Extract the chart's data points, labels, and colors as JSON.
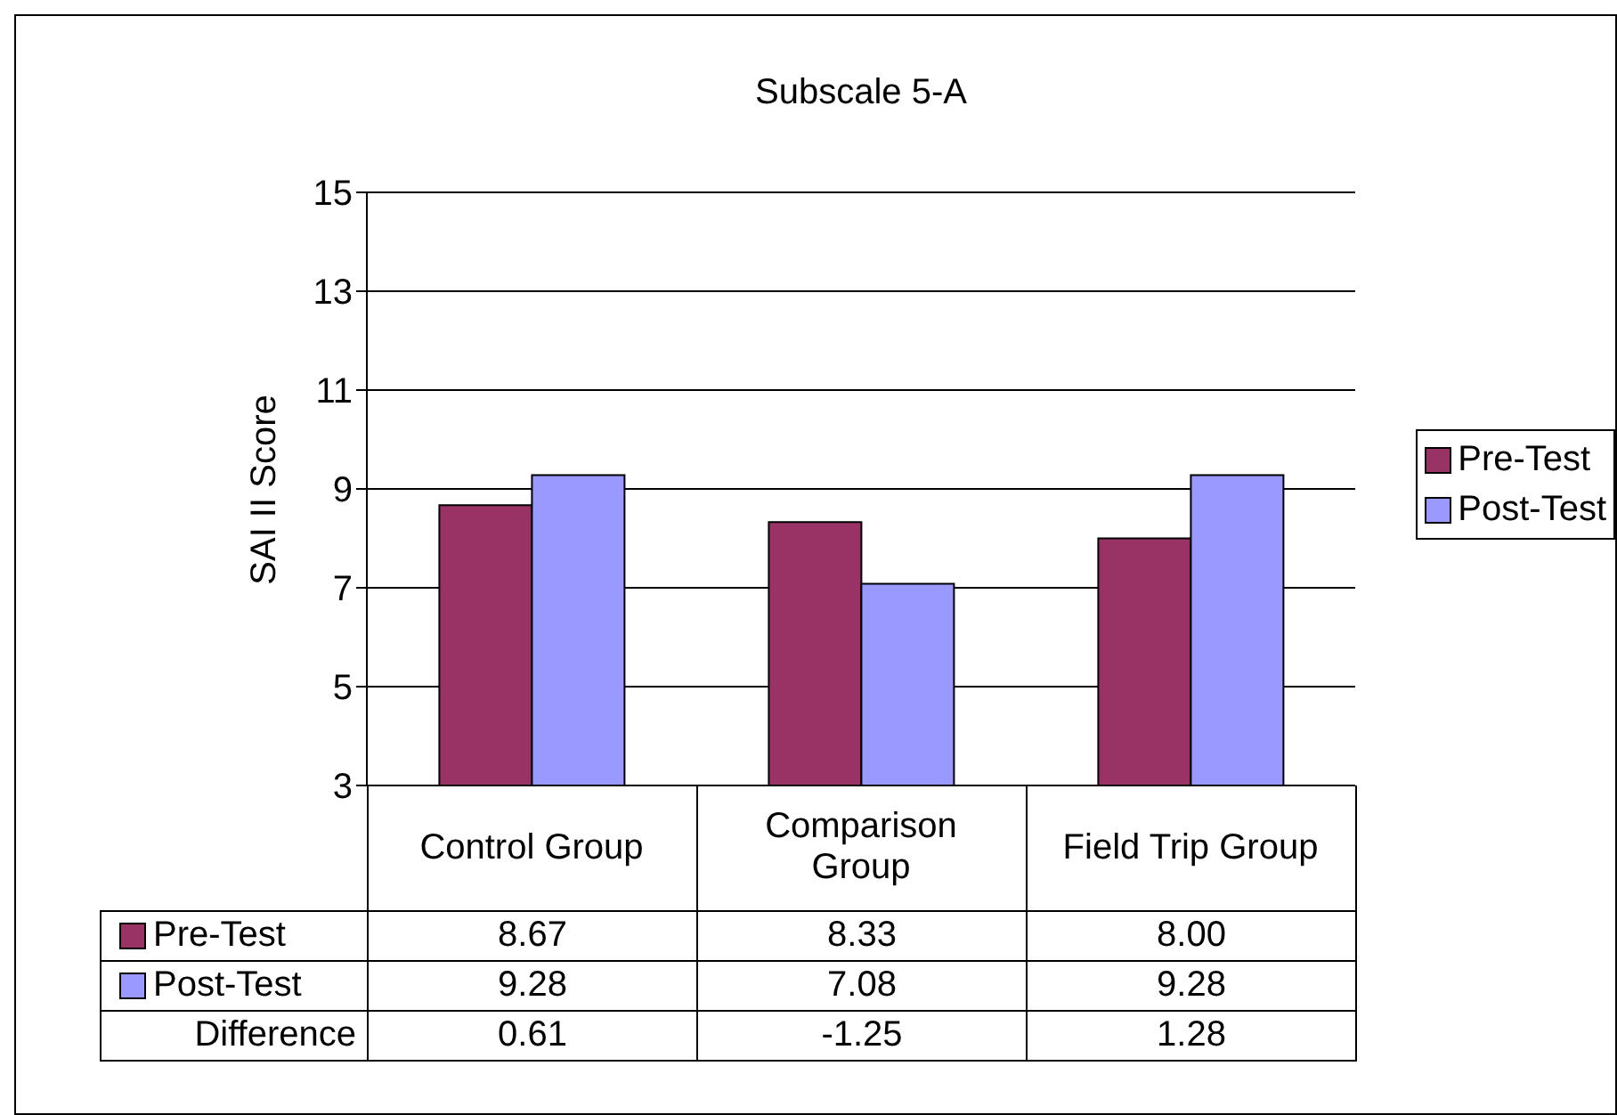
{
  "chart_data": {
    "type": "bar",
    "title": "Subscale 5-A",
    "ylabel": "SAI II Score",
    "categories": [
      "Control Group",
      "Comparison Group",
      "Field Trip Group"
    ],
    "series": [
      {
        "name": "Pre-Test",
        "color": "#993366",
        "values": [
          8.67,
          8.33,
          8.0
        ],
        "value_labels": [
          "8.67",
          "8.33",
          "8.00"
        ]
      },
      {
        "name": "Post-Test",
        "color": "#9999ff",
        "values": [
          9.28,
          7.08,
          9.28
        ],
        "value_labels": [
          "9.28",
          "7.08",
          "9.28"
        ]
      }
    ],
    "ylim": [
      3,
      15
    ],
    "yticks": [
      3,
      5,
      7,
      9,
      11,
      13,
      15
    ],
    "grid": "y",
    "legend": "right",
    "annotations": [
      "Difference",
      "0.61",
      "-1.25",
      "1.28"
    ]
  }
}
